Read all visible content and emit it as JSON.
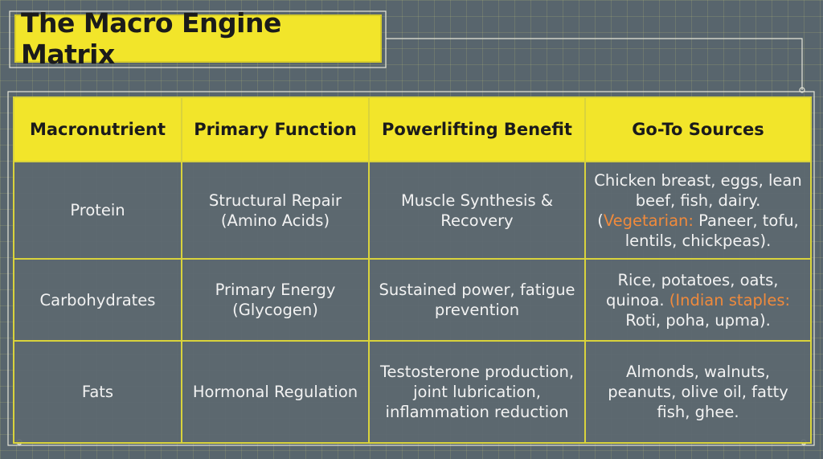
{
  "header": {
    "title": "The Macro Engine Matrix"
  },
  "table": {
    "headers": [
      "Macronutrient",
      "Primary Function",
      "Powerlifting Benefit",
      "Go-To Sources"
    ],
    "rows": [
      [
        "Protein",
        "Structural Repair (Amino Acids)",
        "Muscle Synthesis & Recovery",
        {
          "before": "Chicken breast, eggs, lean beef, fish, dairy. (",
          "highlight": "Vegetarian:",
          "after": " Paneer, tofu, lentils, chickpeas)."
        }
      ],
      [
        "Carbohydrates",
        "Primary Energy (Glycogen)",
        "Sustained power, fatigue prevention",
        {
          "before": "Rice, potatoes, oats, quinoa. ",
          "highlight": "(Indian staples:",
          "after": " Roti, poha, upma)."
        }
      ],
      [
        "Fats",
        "Hormonal Regulation",
        "Testosterone production, joint lubrication, inflammation reduction",
        {
          "before": "Almonds, walnuts, peanuts, olive oil, fatty fish, ghee."
        }
      ]
    ]
  }
}
